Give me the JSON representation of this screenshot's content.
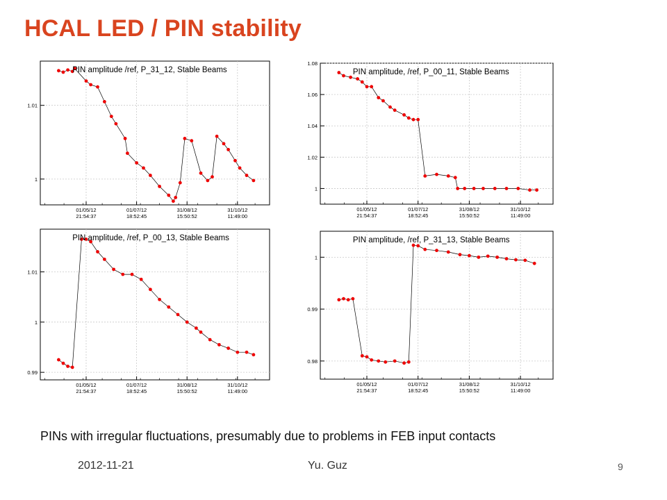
{
  "slide": {
    "title": "HCAL LED / PIN stability",
    "caption": "PINs with irregular fluctuations, presumably due to problems in FEB input contacts",
    "footer_date": "2012-11-21",
    "footer_author": "Yu. Guz",
    "page_number": "9"
  },
  "colors": {
    "title": "#d9441f",
    "data": "#ee0000",
    "line": "#000000",
    "grid": "#c8c8c8"
  },
  "chart_data": [
    {
      "type": "line",
      "title": "PIN amplitude /ref, P_31_12, Stable Beams",
      "xlabel": "",
      "ylabel": "",
      "x_ticks": [
        {
          "date": "01/05/12",
          "time": "21:54:37"
        },
        {
          "date": "01/07/12",
          "time": "18:52:45"
        },
        {
          "date": "31/08/12",
          "time": "15:50:52"
        },
        {
          "date": "31/10/12",
          "time": "11:49:00"
        }
      ],
      "x_tick_pos": [
        0.2,
        0.42,
        0.64,
        0.86
      ],
      "ylim": [
        0.9965,
        1.016
      ],
      "y_ticks": [
        1,
        1.01
      ],
      "y_tick_labels": [
        "1",
        "1.01"
      ],
      "grid": true,
      "x": [
        0.08,
        0.1,
        0.12,
        0.14,
        0.15,
        0.2,
        0.22,
        0.25,
        0.28,
        0.31,
        0.33,
        0.37,
        0.38,
        0.42,
        0.45,
        0.48,
        0.52,
        0.56,
        0.58,
        0.59,
        0.61,
        0.63,
        0.66,
        0.7,
        0.73,
        0.75,
        0.77,
        0.8,
        0.82,
        0.85,
        0.87,
        0.9,
        0.93
      ],
      "y": [
        1.0147,
        1.0145,
        1.0148,
        1.0146,
        1.015,
        1.0133,
        1.0128,
        1.0125,
        1.0105,
        1.0085,
        1.0075,
        1.0055,
        1.0035,
        1.0022,
        1.0015,
        1.0005,
        0.999,
        0.9978,
        0.997,
        0.9975,
        0.9995,
        1.0055,
        1.0052,
        1.0008,
        0.9998,
        1.0003,
        1.0058,
        1.0048,
        1.004,
        1.0025,
        1.0015,
        1.0005,
        0.9998
      ]
    },
    {
      "type": "line",
      "title": "PIN amplitude, /ref, P_00_11, Stable Beams",
      "xlabel": "",
      "ylabel": "",
      "x_ticks": [
        {
          "date": "01/05/12",
          "time": "21:54:37"
        },
        {
          "date": "01/07/12",
          "time": "18:52:45"
        },
        {
          "date": "31/08/12",
          "time": "15:50:52"
        },
        {
          "date": "31/10/12",
          "time": "11:49:00"
        }
      ],
      "x_tick_pos": [
        0.2,
        0.42,
        0.64,
        0.86
      ],
      "ylim": [
        0.99,
        1.08
      ],
      "y_ticks": [
        1,
        1.02,
        1.04,
        1.06,
        1.08
      ],
      "y_tick_labels": [
        "1",
        "1.02",
        "1.04",
        "1.06",
        "1.08"
      ],
      "grid": true,
      "x": [
        0.08,
        0.1,
        0.13,
        0.16,
        0.18,
        0.2,
        0.22,
        0.25,
        0.27,
        0.3,
        0.32,
        0.36,
        0.38,
        0.4,
        0.42,
        0.45,
        0.5,
        0.55,
        0.58,
        0.59,
        0.62,
        0.66,
        0.7,
        0.75,
        0.8,
        0.85,
        0.9,
        0.93
      ],
      "y": [
        1.074,
        1.072,
        1.071,
        1.07,
        1.068,
        1.065,
        1.065,
        1.058,
        1.056,
        1.052,
        1.05,
        1.047,
        1.045,
        1.044,
        1.044,
        1.008,
        1.009,
        1.008,
        1.007,
        1,
        1.0,
        1.0,
        1.0,
        1.0,
        1.0,
        1.0,
        0.999,
        0.999
      ]
    },
    {
      "type": "line",
      "title": "PIN amplitude, /ref, P_00_13, Stable Beams",
      "xlabel": "",
      "ylabel": "",
      "x_ticks": [
        {
          "date": "01/05/12",
          "time": "21:54:37"
        },
        {
          "date": "01/07/12",
          "time": "18:52:45"
        },
        {
          "date": "31/08/12",
          "time": "15:50:52"
        },
        {
          "date": "31/10/12",
          "time": "11:49:00"
        }
      ],
      "x_tick_pos": [
        0.2,
        0.42,
        0.64,
        0.86
      ],
      "ylim": [
        0.9885,
        1.0185
      ],
      "y_ticks": [
        0.99,
        1,
        1.01
      ],
      "y_tick_labels": [
        "0.99",
        "1",
        "1.01"
      ],
      "grid": true,
      "x": [
        0.08,
        0.1,
        0.12,
        0.14,
        0.18,
        0.2,
        0.22,
        0.25,
        0.28,
        0.32,
        0.36,
        0.4,
        0.44,
        0.48,
        0.52,
        0.56,
        0.6,
        0.64,
        0.68,
        0.7,
        0.74,
        0.78,
        0.82,
        0.86,
        0.9,
        0.93
      ],
      "y": [
        0.9925,
        0.9918,
        0.9912,
        0.991,
        1.0165,
        1.0165,
        1.016,
        1.014,
        1.0125,
        1.0105,
        1.0095,
        1.0095,
        1.0085,
        1.0065,
        1.0045,
        1.003,
        1.0015,
        1.0,
        0.9988,
        0.998,
        0.9965,
        0.9955,
        0.9948,
        0.994,
        0.994,
        0.9935
      ]
    },
    {
      "type": "line",
      "title": "PIN amplitude, /ref, P_31_13, Stable Beams",
      "xlabel": "",
      "ylabel": "",
      "x_ticks": [
        {
          "date": "01/05/12",
          "time": "21:54:37"
        },
        {
          "date": "01/07/12",
          "time": "18:52:45"
        },
        {
          "date": "31/08/12",
          "time": "15:50:52"
        },
        {
          "date": "31/10/12",
          "time": "11:49:00"
        }
      ],
      "x_tick_pos": [
        0.2,
        0.42,
        0.64,
        0.86
      ],
      "ylim": [
        0.9765,
        1.005
      ],
      "y_ticks": [
        0.98,
        0.99,
        1
      ],
      "y_tick_labels": [
        "0.98",
        "0.99",
        "1"
      ],
      "grid": true,
      "x": [
        0.08,
        0.1,
        0.12,
        0.14,
        0.18,
        0.2,
        0.22,
        0.25,
        0.28,
        0.32,
        0.36,
        0.38,
        0.4,
        0.42,
        0.45,
        0.5,
        0.55,
        0.6,
        0.64,
        0.68,
        0.72,
        0.76,
        0.8,
        0.84,
        0.88,
        0.92
      ],
      "y": [
        0.9918,
        0.992,
        0.9918,
        0.992,
        0.981,
        0.9808,
        0.9802,
        0.98,
        0.9798,
        0.98,
        0.9796,
        0.9798,
        1.0023,
        1.0022,
        1.0015,
        1.0013,
        1.001,
        1.0005,
        1.0003,
        1.0,
        1.0002,
        1.0,
        0.9997,
        0.9995,
        0.9994,
        0.9988
      ]
    }
  ]
}
